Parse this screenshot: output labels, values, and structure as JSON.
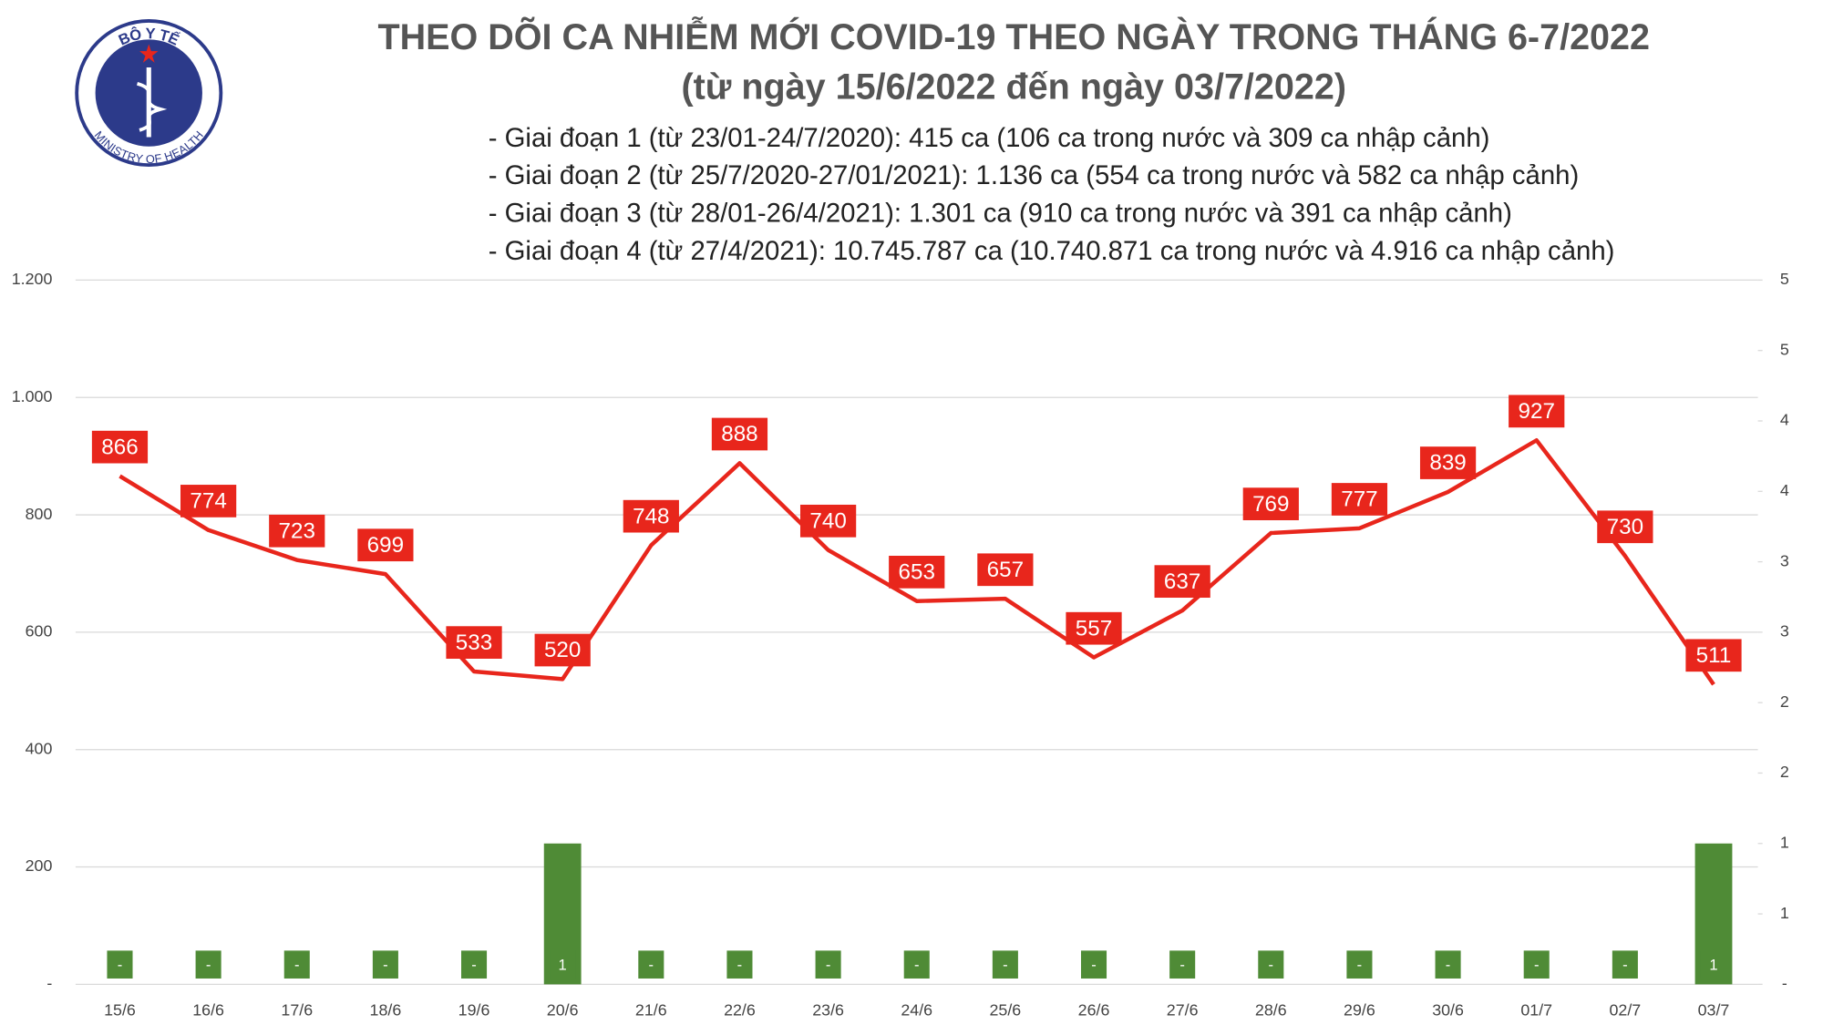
{
  "logo": {
    "top": "BỘ Y TẾ",
    "bottom": "MINISTRY OF HEALTH"
  },
  "chart_data": {
    "type": "combo",
    "title": "THEO DÕI CA NHIỄM MỚI COVID-19 THEO NGÀY TRONG THÁNG 6-7/2022",
    "subtitle": "(từ ngày 15/6/2022 đến ngày 03/7/2022)",
    "notes": [
      "- Giai đoạn 1 (từ 23/01-24/7/2020): 415 ca (106 ca trong nước và 309 ca nhập cảnh)",
      "- Giai đoạn 2 (từ 25/7/2020-27/01/2021): 1.136 ca (554 ca trong nước và 582 ca nhập cảnh)",
      "- Giai đoạn 3 (từ 28/01-26/4/2021): 1.301 ca (910 ca trong nước và 391 ca nhập cảnh)",
      "- Giai đoạn 4 (từ 27/4/2021): 10.745.787 ca (10.740.871 ca trong nước và 4.916 ca nhập cảnh)"
    ],
    "categories": [
      "15/6",
      "16/6",
      "17/6",
      "18/6",
      "19/6",
      "20/6",
      "21/6",
      "22/6",
      "23/6",
      "24/6",
      "25/6",
      "26/6",
      "27/6",
      "28/6",
      "29/6",
      "30/6",
      "01/7",
      "02/7",
      "03/7"
    ],
    "series": [
      {
        "type": "line",
        "color": "#e8261c",
        "values": [
          866,
          774,
          723,
          699,
          533,
          520,
          748,
          888,
          740,
          653,
          657,
          557,
          637,
          769,
          777,
          839,
          927,
          730,
          511
        ]
      },
      {
        "type": "bar",
        "axis": "y2",
        "color": "#4f8b36",
        "values": [
          0,
          0,
          0,
          0,
          0,
          1,
          0,
          0,
          0,
          0,
          0,
          0,
          0,
          0,
          0,
          0,
          0,
          0,
          1
        ],
        "value_labels": [
          "-",
          "-",
          "-",
          "-",
          "-",
          "1",
          "-",
          "-",
          "-",
          "-",
          "-",
          "-",
          "-",
          "-",
          "-",
          "-",
          "-",
          "-",
          "1"
        ]
      }
    ],
    "ylim": [
      0,
      1200
    ],
    "yticks": [
      {
        "value": 0,
        "label": "-"
      },
      200,
      400,
      600,
      800,
      {
        "value": 1000,
        "label": "1.000"
      },
      {
        "value": 1200,
        "label": "1.200"
      }
    ],
    "y2lim": [
      0,
      5
    ],
    "y2ticks": [
      {
        "value": 0,
        "label": "-"
      },
      {
        "value": 0.5,
        "label": "1"
      },
      1,
      {
        "value": 1.5,
        "label": "2"
      },
      2,
      {
        "value": 2.5,
        "label": "3"
      },
      3,
      {
        "value": 3.5,
        "label": "4"
      },
      4,
      {
        "value": 4.5,
        "label": "5"
      },
      5
    ],
    "grid": true
  }
}
